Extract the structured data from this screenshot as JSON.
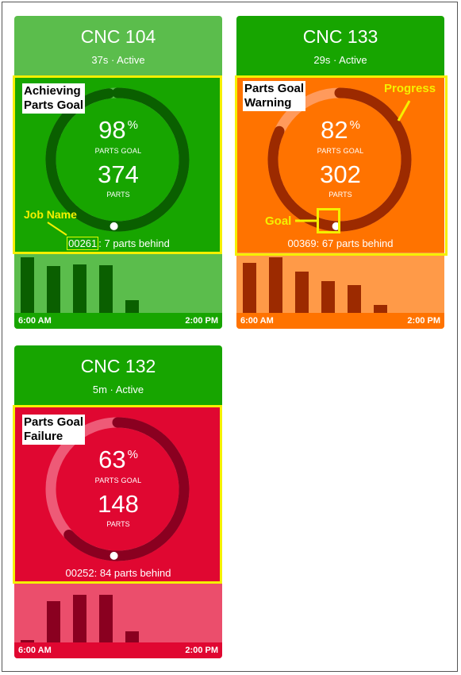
{
  "colors": {
    "green_header": "#17a500",
    "green_light": "#5bbd4c",
    "green_dark": "#0a5f00",
    "orange_header": "#17a500",
    "orange_main": "#ff7300",
    "orange_light": "#ff9a48",
    "orange_dark": "#9c2a00",
    "red_main": "#e00731",
    "red_light": "#eb4e6c",
    "red_dark": "#8a0020",
    "highlight": "#f5f000"
  },
  "cards": [
    {
      "title": "CNC 104",
      "subtitle": "37s · Active",
      "percent": "98",
      "percent_sign": "%",
      "percent_label": "PARTS GOAL",
      "parts": "374",
      "parts_label": "PARTS",
      "job": "00261",
      "behind_text": ": 7 parts behind",
      "progress_fraction": 0.98,
      "goal_fraction": 0.98,
      "time_start": "6:00 AM",
      "time_end": "2:00 PM",
      "bars": [
        70,
        59,
        61,
        60,
        16
      ]
    },
    {
      "title": "CNC 133",
      "subtitle": "29s · Active",
      "percent": "82",
      "percent_sign": "%",
      "percent_label": "PARTS GOAL",
      "parts": "302",
      "parts_label": "PARTS",
      "job": "00369",
      "behind_text": ": 67 parts behind",
      "progress_fraction": 0.82,
      "goal_fraction": 1.0,
      "time_start": "6:00 AM",
      "time_end": "2:00 PM",
      "bars": [
        63,
        70,
        52,
        40,
        35,
        10
      ]
    },
    {
      "title": "CNC 132",
      "subtitle": "5m · Active",
      "percent": "63",
      "percent_sign": "%",
      "percent_label": "PARTS GOAL",
      "parts": "148",
      "parts_label": "PARTS",
      "job": "00252",
      "behind_text": ": 84 parts behind",
      "progress_fraction": 0.63,
      "goal_fraction": 1.0,
      "time_start": "6:00 AM",
      "time_end": "2:00 PM",
      "bars": [
        3,
        52,
        60,
        60,
        14
      ]
    }
  ],
  "annotations": {
    "achieving": "Achieving Parts Goal",
    "achieving_l1": "Achieving",
    "achieving_l2": "Parts Goal",
    "warning_l1": "Parts Goal",
    "warning_l2": "Warning",
    "failure_l1": "Parts Goal",
    "failure_l2": "Failure",
    "job_name": "Job Name",
    "progress": "Progress",
    "goal": "Goal"
  }
}
